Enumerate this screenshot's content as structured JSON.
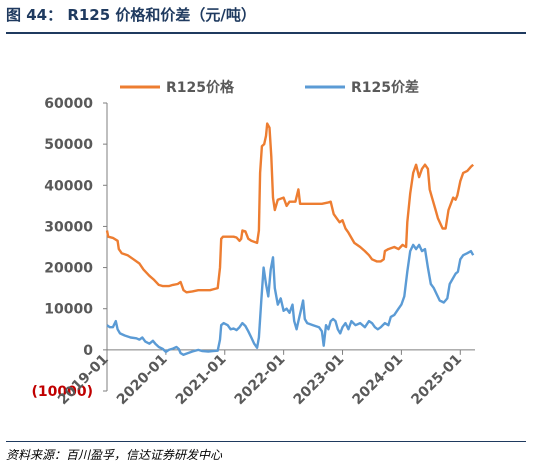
{
  "figure": {
    "title": "图 44：  R125 价格和价差（元/吨）",
    "source": "资料来源：百川盈孚，信达证券研发中心"
  },
  "chart_data": {
    "type": "line",
    "xlabel": "",
    "ylabel": "",
    "ylim": [
      -10000,
      60000
    ],
    "yticks": [
      {
        "value": 60000,
        "label": "60000"
      },
      {
        "value": 50000,
        "label": "50000"
      },
      {
        "value": 40000,
        "label": "40000"
      },
      {
        "value": 30000,
        "label": "30000"
      },
      {
        "value": 20000,
        "label": "20000"
      },
      {
        "value": 10000,
        "label": "10000"
      },
      {
        "value": 0,
        "label": "0"
      },
      {
        "value": -10000,
        "label": "(10000)",
        "color": "#c00000"
      }
    ],
    "xlim": [
      2019.0,
      2025.25
    ],
    "xticks": [
      {
        "value": 2019.0,
        "label": "2019-01"
      },
      {
        "value": 2020.0,
        "label": "2020-01"
      },
      {
        "value": 2021.0,
        "label": "2021-01"
      },
      {
        "value": 2022.0,
        "label": "2022-01"
      },
      {
        "value": 2023.0,
        "label": "2023-01"
      },
      {
        "value": 2024.0,
        "label": "2024-01"
      },
      {
        "value": 2025.0,
        "label": "2025-01"
      }
    ],
    "legend_position": "top",
    "grid": false,
    "series": [
      {
        "name": "R125价格",
        "color": "#ed7d31",
        "points": [
          [
            2019.0,
            29000
          ],
          [
            2019.02,
            27500
          ],
          [
            2019.1,
            27200
          ],
          [
            2019.18,
            26500
          ],
          [
            2019.2,
            24500
          ],
          [
            2019.25,
            23500
          ],
          [
            2019.35,
            23000
          ],
          [
            2019.45,
            22000
          ],
          [
            2019.55,
            21000
          ],
          [
            2019.62,
            19500
          ],
          [
            2019.72,
            18000
          ],
          [
            2019.8,
            17000
          ],
          [
            2019.88,
            15800
          ],
          [
            2019.95,
            15500
          ],
          [
            2020.05,
            15500
          ],
          [
            2020.12,
            15800
          ],
          [
            2020.2,
            16000
          ],
          [
            2020.25,
            16500
          ],
          [
            2020.3,
            14500
          ],
          [
            2020.35,
            14000
          ],
          [
            2020.45,
            14200
          ],
          [
            2020.55,
            14500
          ],
          [
            2020.65,
            14500
          ],
          [
            2020.75,
            14500
          ],
          [
            2020.8,
            14700
          ],
          [
            2020.88,
            15000
          ],
          [
            2020.92,
            20000
          ],
          [
            2020.94,
            27000
          ],
          [
            2020.97,
            27500
          ],
          [
            2021.05,
            27500
          ],
          [
            2021.15,
            27500
          ],
          [
            2021.2,
            27300
          ],
          [
            2021.25,
            26500
          ],
          [
            2021.28,
            27000
          ],
          [
            2021.3,
            29000
          ],
          [
            2021.35,
            28800
          ],
          [
            2021.4,
            27000
          ],
          [
            2021.45,
            26500
          ],
          [
            2021.55,
            26000
          ],
          [
            2021.58,
            29000
          ],
          [
            2021.6,
            43000
          ],
          [
            2021.63,
            49500
          ],
          [
            2021.67,
            50000
          ],
          [
            2021.7,
            52000
          ],
          [
            2021.72,
            55000
          ],
          [
            2021.76,
            54000
          ],
          [
            2021.79,
            47000
          ],
          [
            2021.82,
            37000
          ],
          [
            2021.85,
            34000
          ],
          [
            2021.9,
            36500
          ],
          [
            2022.0,
            37000
          ],
          [
            2022.05,
            35000
          ],
          [
            2022.1,
            36000
          ],
          [
            2022.2,
            36000
          ],
          [
            2022.25,
            39000
          ],
          [
            2022.28,
            35500
          ],
          [
            2022.35,
            35500
          ],
          [
            2022.5,
            35500
          ],
          [
            2022.65,
            35500
          ],
          [
            2022.75,
            35800
          ],
          [
            2022.8,
            36000
          ],
          [
            2022.85,
            33000
          ],
          [
            2022.9,
            32000
          ],
          [
            2022.95,
            31000
          ],
          [
            2023.0,
            31500
          ],
          [
            2023.05,
            29500
          ],
          [
            2023.1,
            28500
          ],
          [
            2023.2,
            26000
          ],
          [
            2023.3,
            25000
          ],
          [
            2023.38,
            24000
          ],
          [
            2023.45,
            23000
          ],
          [
            2023.5,
            22000
          ],
          [
            2023.58,
            21500
          ],
          [
            2023.65,
            21500
          ],
          [
            2023.7,
            22000
          ],
          [
            2023.72,
            24000
          ],
          [
            2023.78,
            24500
          ],
          [
            2023.88,
            25000
          ],
          [
            2023.95,
            24500
          ],
          [
            2024.02,
            25500
          ],
          [
            2024.08,
            25000
          ],
          [
            2024.1,
            31000
          ],
          [
            2024.15,
            38000
          ],
          [
            2024.2,
            43000
          ],
          [
            2024.25,
            45000
          ],
          [
            2024.3,
            42000
          ],
          [
            2024.35,
            44000
          ],
          [
            2024.4,
            45000
          ],
          [
            2024.45,
            44000
          ],
          [
            2024.48,
            39000
          ],
          [
            2024.52,
            37000
          ],
          [
            2024.58,
            34000
          ],
          [
            2024.62,
            32000
          ],
          [
            2024.7,
            29500
          ],
          [
            2024.75,
            29500
          ],
          [
            2024.8,
            34000
          ],
          [
            2024.88,
            37000
          ],
          [
            2024.92,
            36500
          ],
          [
            2024.95,
            37500
          ],
          [
            2025.0,
            41000
          ],
          [
            2025.05,
            43000
          ],
          [
            2025.12,
            43500
          ],
          [
            2025.18,
            44500
          ],
          [
            2025.22,
            45000
          ]
        ]
      },
      {
        "name": "R125价差",
        "color": "#5b9bd5",
        "points": [
          [
            2019.0,
            6000
          ],
          [
            2019.05,
            5500
          ],
          [
            2019.1,
            5500
          ],
          [
            2019.15,
            7000
          ],
          [
            2019.18,
            5000
          ],
          [
            2019.22,
            4000
          ],
          [
            2019.3,
            3500
          ],
          [
            2019.4,
            3000
          ],
          [
            2019.5,
            2800
          ],
          [
            2019.55,
            2500
          ],
          [
            2019.6,
            3000
          ],
          [
            2019.65,
            2000
          ],
          [
            2019.72,
            1500
          ],
          [
            2019.78,
            2200
          ],
          [
            2019.82,
            1500
          ],
          [
            2019.88,
            700
          ],
          [
            2019.95,
            200
          ],
          [
            2020.0,
            -500
          ],
          [
            2020.05,
            0
          ],
          [
            2020.12,
            300
          ],
          [
            2020.18,
            700
          ],
          [
            2020.22,
            200
          ],
          [
            2020.25,
            -800
          ],
          [
            2020.3,
            -1200
          ],
          [
            2020.35,
            -900
          ],
          [
            2020.45,
            -400
          ],
          [
            2020.55,
            0
          ],
          [
            2020.62,
            -300
          ],
          [
            2020.72,
            -400
          ],
          [
            2020.8,
            -300
          ],
          [
            2020.88,
            -200
          ],
          [
            2020.92,
            2500
          ],
          [
            2020.94,
            6000
          ],
          [
            2020.98,
            6500
          ],
          [
            2021.05,
            6000
          ],
          [
            2021.1,
            5000
          ],
          [
            2021.15,
            5200
          ],
          [
            2021.2,
            4800
          ],
          [
            2021.25,
            5500
          ],
          [
            2021.3,
            6500
          ],
          [
            2021.35,
            5800
          ],
          [
            2021.4,
            4500
          ],
          [
            2021.45,
            3000
          ],
          [
            2021.5,
            1500
          ],
          [
            2021.55,
            500
          ],
          [
            2021.58,
            3000
          ],
          [
            2021.62,
            12000
          ],
          [
            2021.66,
            20000
          ],
          [
            2021.7,
            16000
          ],
          [
            2021.74,
            13000
          ],
          [
            2021.78,
            19500
          ],
          [
            2021.82,
            22500
          ],
          [
            2021.85,
            15000
          ],
          [
            2021.9,
            11000
          ],
          [
            2021.95,
            12500
          ],
          [
            2022.0,
            9500
          ],
          [
            2022.05,
            10000
          ],
          [
            2022.1,
            9000
          ],
          [
            2022.15,
            11000
          ],
          [
            2022.18,
            7000
          ],
          [
            2022.22,
            5000
          ],
          [
            2022.25,
            7000
          ],
          [
            2022.3,
            10000
          ],
          [
            2022.33,
            12000
          ],
          [
            2022.36,
            7500
          ],
          [
            2022.4,
            6500
          ],
          [
            2022.5,
            6000
          ],
          [
            2022.6,
            5500
          ],
          [
            2022.65,
            4500
          ],
          [
            2022.68,
            1000
          ],
          [
            2022.72,
            6000
          ],
          [
            2022.76,
            5000
          ],
          [
            2022.8,
            7000
          ],
          [
            2022.84,
            7500
          ],
          [
            2022.88,
            7000
          ],
          [
            2022.92,
            5000
          ],
          [
            2022.96,
            4000
          ],
          [
            2023.0,
            5500
          ],
          [
            2023.05,
            6500
          ],
          [
            2023.1,
            5000
          ],
          [
            2023.15,
            7000
          ],
          [
            2023.22,
            6000
          ],
          [
            2023.3,
            6500
          ],
          [
            2023.38,
            5500
          ],
          [
            2023.45,
            7000
          ],
          [
            2023.5,
            6500
          ],
          [
            2023.55,
            5500
          ],
          [
            2023.6,
            5000
          ],
          [
            2023.65,
            5500
          ],
          [
            2023.72,
            6500
          ],
          [
            2023.78,
            6000
          ],
          [
            2023.82,
            8000
          ],
          [
            2023.88,
            8500
          ],
          [
            2023.95,
            10000
          ],
          [
            2024.0,
            11000
          ],
          [
            2024.05,
            13000
          ],
          [
            2024.1,
            19000
          ],
          [
            2024.15,
            24000
          ],
          [
            2024.2,
            25500
          ],
          [
            2024.25,
            24500
          ],
          [
            2024.3,
            25500
          ],
          [
            2024.35,
            24000
          ],
          [
            2024.4,
            24500
          ],
          [
            2024.45,
            20000
          ],
          [
            2024.5,
            16000
          ],
          [
            2024.55,
            15000
          ],
          [
            2024.6,
            13500
          ],
          [
            2024.65,
            12000
          ],
          [
            2024.72,
            11500
          ],
          [
            2024.78,
            12500
          ],
          [
            2024.82,
            16000
          ],
          [
            2024.88,
            17500
          ],
          [
            2024.92,
            18500
          ],
          [
            2024.96,
            19000
          ],
          [
            2025.0,
            22000
          ],
          [
            2025.05,
            23000
          ],
          [
            2025.12,
            23500
          ],
          [
            2025.18,
            24000
          ],
          [
            2025.22,
            23000
          ]
        ]
      }
    ]
  }
}
